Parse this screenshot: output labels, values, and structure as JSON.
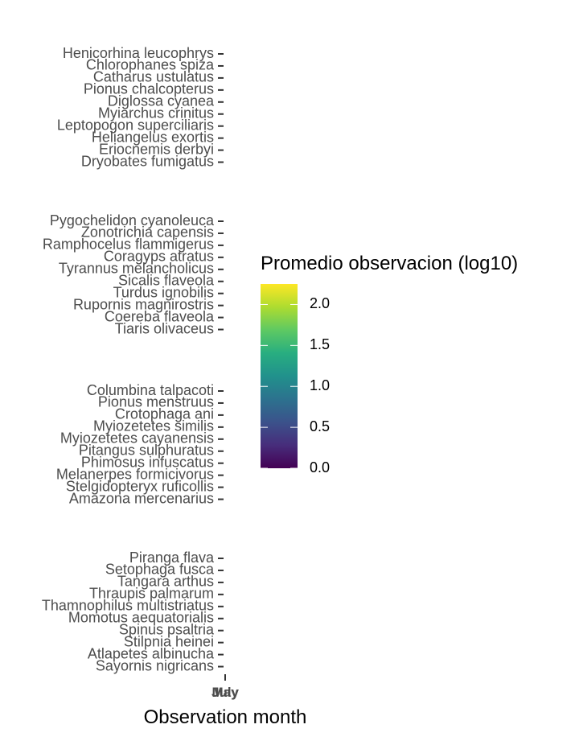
{
  "chart_data": {
    "type": "heatmap",
    "xlabel": "Observation month",
    "ylabel": "",
    "x_categories": [
      "May",
      "July"
    ],
    "y_groups": [
      {
        "categories": [
          "Henicorhina leucophrys",
          "Chlorophanes spiza",
          "Catharus ustulatus",
          "Pionus chalcopterus",
          "Diglossa cyanea",
          "Myiarchus crinitus",
          "Leptopogon superciliaris",
          "Heliangelus exortis",
          "Eriocnemis derbyi",
          "Dryobates fumigatus"
        ]
      },
      {
        "categories": [
          "Pygochelidon cyanoleuca",
          "Zonotrichia capensis",
          "Ramphocelus flammigerus",
          "Coragyps atratus",
          "Tyrannus melancholicus",
          "Sicalis flaveola",
          "Turdus ignobilis",
          "Rupornis magnirostris",
          "Coereba flaveola",
          "Tiaris olivaceus"
        ]
      },
      {
        "categories": [
          "Columbina talpacoti",
          "Pionus menstruus",
          "Crotophaga ani",
          "Myiozetetes similis",
          "Myiozetetes cayanensis",
          "Pitangus sulphuratus",
          "Phimosus infuscatus",
          "Melanerpes formicivorus",
          "Stelgidopteryx ruficollis",
          "Amazona mercenarius"
        ]
      },
      {
        "categories": [
          "Piranga flava",
          "Setophaga fusca",
          "Tangara arthus",
          "Thraupis palmarum",
          "Thamnophilus multistriatus",
          "Momotus aequatorialis",
          "Spinus psaltria",
          "Stilpnia heinei",
          "Atlapetes albinucha",
          "Sayornis nigricans"
        ]
      }
    ],
    "legend": {
      "title": "Promedio  observacion (log10)",
      "ticks": [
        0.0,
        0.5,
        1.0,
        1.5,
        2.0
      ],
      "tick_labels": [
        "0.0",
        "0.5",
        "1.0",
        "1.5",
        "2.0"
      ],
      "range": [
        0,
        2.25
      ],
      "palette": "viridis",
      "placement": "right"
    },
    "grid": false
  }
}
